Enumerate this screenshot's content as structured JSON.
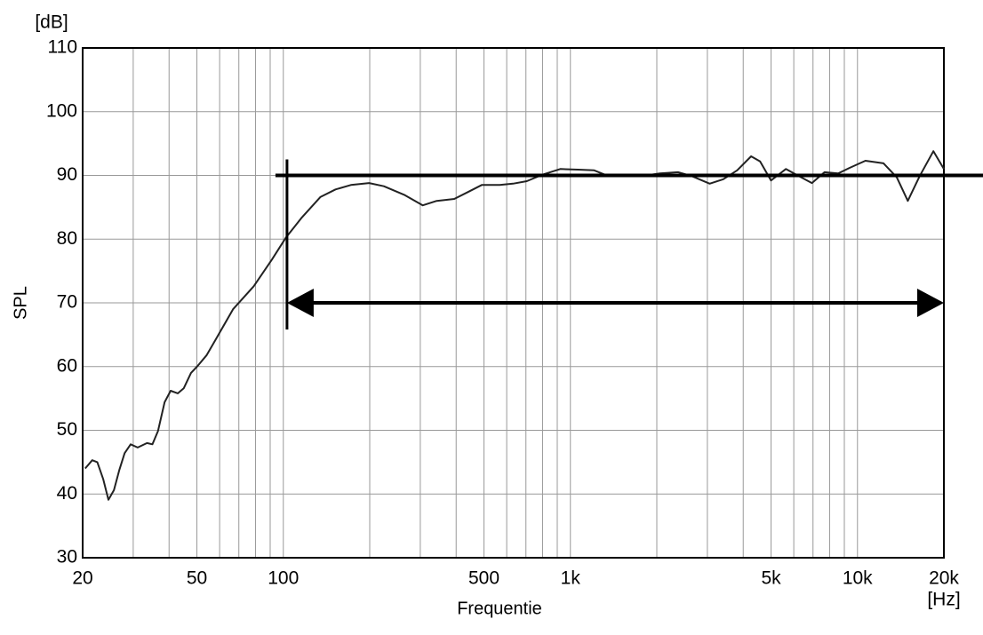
{
  "chart_data": {
    "type": "line",
    "xlabel": "Frequentie",
    "ylabel": "SPL",
    "xunit": "[Hz]",
    "yunit": "[dB]",
    "xscale": "log",
    "grid": true,
    "color": "#222222",
    "xlim": [
      20,
      20000
    ],
    "ylim": [
      30,
      110
    ],
    "xticks": [
      20,
      50,
      100,
      500,
      {
        "value": 1000,
        "label": "1k"
      },
      {
        "value": 5000,
        "label": "5k"
      },
      {
        "value": 10000,
        "label": "10k"
      },
      {
        "value": 20000,
        "label": "20k"
      }
    ],
    "xgrid": [
      20,
      30,
      40,
      50,
      60,
      70,
      80,
      90,
      100,
      200,
      300,
      400,
      500,
      600,
      700,
      800,
      900,
      1000,
      2000,
      3000,
      4000,
      5000,
      6000,
      7000,
      8000,
      9000,
      10000,
      20000
    ],
    "yticks": [
      30,
      40,
      50,
      60,
      70,
      80,
      90,
      100,
      110
    ],
    "x": [
      20.4,
      21.6,
      22.5,
      23.6,
      24.6,
      25.7,
      26.8,
      28,
      29.4,
      31.1,
      33.5,
      35,
      36.6,
      38.6,
      40.5,
      42.9,
      45,
      47.7,
      50.3,
      54.1,
      59.1,
      66.8,
      78.9,
      91.3,
      102,
      116,
      134.6,
      152,
      172,
      199,
      224,
      265,
      306,
      342,
      394,
      440,
      491,
      567,
      631,
      705,
      797,
      922,
      1064,
      1210,
      1322,
      1531,
      1770,
      2049,
      2370,
      2643,
      3056,
      3410,
      3810,
      4260,
      4580,
      5000,
      5630,
      6250,
      6940,
      7680,
      8560,
      9410,
      10660,
      12330,
      13710,
      14970,
      16470,
      18380,
      20000
    ],
    "values": [
      44,
      45.3,
      45,
      42.3,
      39.1,
      40.6,
      43.7,
      46.4,
      47.8,
      47.3,
      48,
      47.8,
      49.9,
      54.4,
      56.2,
      55.8,
      56.6,
      59,
      60.1,
      61.8,
      64.8,
      69,
      72.6,
      76.8,
      80.2,
      83.4,
      86.6,
      87.8,
      88.5,
      88.8,
      88.3,
      86.9,
      85.3,
      86,
      86.3,
      87.4,
      88.5,
      88.5,
      88.7,
      89.1,
      90.1,
      91,
      90.9,
      90.8,
      90.1,
      89.9,
      89.9,
      90.3,
      90.5,
      89.9,
      88.7,
      89.4,
      90.8,
      93,
      92.2,
      89.2,
      91,
      89.9,
      88.8,
      90.5,
      90.3,
      91.2,
      92.3,
      91.9,
      89.7,
      86,
      89.9,
      93.8,
      91
    ],
    "reference_line": 90,
    "bandwidth": {
      "from": 103,
      "to": 20000,
      "level": 70
    }
  }
}
